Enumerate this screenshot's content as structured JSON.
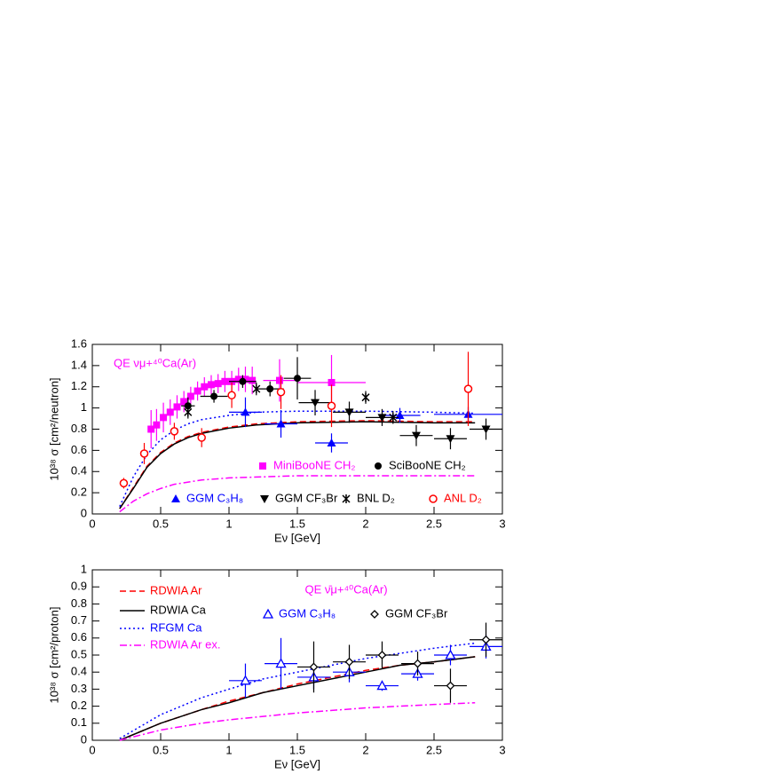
{
  "chart_data": [
    {
      "type": "line",
      "title": "QE  νμ+⁴⁰Ca(Ar)",
      "title_color": "#ff00ff",
      "xlabel": "Eν [GeV]",
      "ylabel": "10³⁸ σ [cm²/neutron]",
      "xlim": [
        0,
        3
      ],
      "ylim": [
        0,
        1.6
      ],
      "xticks": [
        0,
        0.5,
        1,
        1.5,
        2,
        2.5,
        3
      ],
      "yticks": [
        0,
        0.2,
        0.4,
        0.6,
        0.8,
        1,
        1.2,
        1.4,
        1.6
      ],
      "curves": [
        {
          "color": "#ff0000",
          "style": "dashed",
          "x": [
            0.2,
            0.3,
            0.4,
            0.5,
            0.6,
            0.7,
            0.8,
            1.0,
            1.2,
            1.5,
            2.0,
            2.5,
            2.8
          ],
          "values": [
            0.05,
            0.25,
            0.45,
            0.58,
            0.67,
            0.73,
            0.77,
            0.82,
            0.85,
            0.87,
            0.88,
            0.87,
            0.87
          ]
        },
        {
          "color": "#000000",
          "style": "solid",
          "x": [
            0.2,
            0.3,
            0.4,
            0.5,
            0.6,
            0.7,
            0.8,
            1.0,
            1.2,
            1.5,
            2.0,
            2.5,
            2.8
          ],
          "values": [
            0.05,
            0.24,
            0.44,
            0.57,
            0.66,
            0.72,
            0.76,
            0.81,
            0.84,
            0.86,
            0.87,
            0.86,
            0.86
          ]
        },
        {
          "color": "#0000ff",
          "style": "dotted",
          "x": [
            0.2,
            0.3,
            0.4,
            0.5,
            0.6,
            0.7,
            0.8,
            1.0,
            1.2,
            1.5,
            2.0,
            2.5,
            2.8
          ],
          "values": [
            0.07,
            0.35,
            0.56,
            0.7,
            0.79,
            0.85,
            0.89,
            0.93,
            0.96,
            0.97,
            0.97,
            0.96,
            0.95
          ]
        },
        {
          "color": "#ff00ff",
          "style": "dashdot",
          "x": [
            0.2,
            0.3,
            0.4,
            0.5,
            0.6,
            0.8,
            1.0,
            1.5,
            2.0,
            2.8
          ],
          "values": [
            0.02,
            0.12,
            0.19,
            0.24,
            0.28,
            0.32,
            0.34,
            0.36,
            0.36,
            0.36
          ]
        }
      ],
      "points": [
        {
          "name": "MiniBooNE CH₂",
          "color": "#ff00ff",
          "marker": "square",
          "x": [
            0.43,
            0.47,
            0.52,
            0.57,
            0.62,
            0.67,
            0.72,
            0.77,
            0.82,
            0.87,
            0.92,
            0.97,
            1.02,
            1.07,
            1.12,
            1.17,
            1.37,
            1.75
          ],
          "values": [
            0.8,
            0.84,
            0.91,
            0.96,
            1.01,
            1.06,
            1.11,
            1.16,
            1.2,
            1.22,
            1.23,
            1.25,
            1.25,
            1.27,
            1.27,
            1.26,
            1.26,
            1.24
          ],
          "errors": [
            0.18,
            0.15,
            0.14,
            0.12,
            0.11,
            0.1,
            0.09,
            0.09,
            0.09,
            0.09,
            0.09,
            0.1,
            0.1,
            0.11,
            0.12,
            0.13,
            0.2,
            0.26
          ],
          "xerrors": [
            0,
            0,
            0,
            0,
            0,
            0,
            0,
            0,
            0,
            0,
            0,
            0,
            0,
            0,
            0,
            0,
            0.12,
            0.25
          ]
        },
        {
          "name": "SciBooNE CH₂",
          "color": "#000000",
          "marker": "circle",
          "x": [
            0.7,
            0.89,
            1.1,
            1.3,
            1.5
          ],
          "values": [
            1.02,
            1.11,
            1.25,
            1.18,
            1.28
          ],
          "errors": [
            0.08,
            0.06,
            0.06,
            0.07,
            0.2
          ],
          "xerrors": [
            0.05,
            0.1,
            0.1,
            0.1,
            0.1
          ]
        },
        {
          "name": "GGM C₃H₈",
          "color": "#0000ff",
          "marker": "triup",
          "x": [
            1.12,
            1.38,
            1.75,
            2.25,
            2.75
          ],
          "values": [
            0.96,
            0.85,
            0.67,
            0.93,
            0.94
          ],
          "errors": [
            0.14,
            0.13,
            0.09,
            0.07,
            0.07
          ],
          "xerrors": [
            0.12,
            0.12,
            0.12,
            0.15,
            0.25
          ]
        },
        {
          "name": "GGM CF₃Br",
          "color": "#000000",
          "marker": "tridown",
          "x": [
            1.63,
            1.88,
            2.12,
            2.37,
            2.62,
            2.88
          ],
          "values": [
            1.05,
            0.96,
            0.91,
            0.74,
            0.71,
            0.8
          ],
          "errors": [
            0.12,
            0.1,
            0.08,
            0.1,
            0.1,
            0.1
          ],
          "xerrors": [
            0.12,
            0.12,
            0.12,
            0.12,
            0.12,
            0.12
          ]
        },
        {
          "name": "BNL D₂",
          "color": "#000000",
          "marker": "star",
          "x": [
            0.7,
            1.2,
            2.0,
            2.2
          ],
          "values": [
            0.96,
            1.18,
            1.1,
            0.91
          ],
          "errors": [
            0.06,
            0.06,
            0.06,
            0.06
          ],
          "xerrors": [
            0,
            0,
            0,
            0
          ]
        },
        {
          "name": "ANL D₂",
          "color": "#ff0000",
          "marker": "opencircle",
          "x": [
            0.23,
            0.38,
            0.6,
            0.8,
            1.02,
            1.38,
            1.75,
            2.75
          ],
          "values": [
            0.29,
            0.57,
            0.78,
            0.72,
            1.12,
            1.15,
            1.02,
            1.18
          ],
          "errors": [
            0.05,
            0.1,
            0.08,
            0.09,
            0.12,
            0.16,
            0.2,
            0.35
          ],
          "xerrors": [
            0,
            0,
            0,
            0,
            0,
            0,
            0,
            0
          ]
        }
      ]
    },
    {
      "type": "line",
      "title": "QE  ν̄μ+⁴⁰Ca(Ar)",
      "title_color": "#ff00ff",
      "xlabel": "Eν [GeV]",
      "ylabel": "10³⁸ σ [cm²/proton]",
      "xlim": [
        0,
        3
      ],
      "ylim": [
        0,
        1
      ],
      "xticks": [
        0,
        0.5,
        1,
        1.5,
        2,
        2.5,
        3
      ],
      "yticks": [
        0,
        0.1,
        0.2,
        0.3,
        0.4,
        0.5,
        0.6,
        0.7,
        0.8,
        0.9,
        1
      ],
      "curves": [
        {
          "name": "RDWIA Ar",
          "color": "#ff0000",
          "style": "dashed",
          "x": [
            0.2,
            0.5,
            0.8,
            1.0,
            1.25,
            1.5,
            1.75,
            2.0,
            2.25,
            2.5,
            2.8
          ],
          "values": [
            0.0,
            0.1,
            0.18,
            0.23,
            0.28,
            0.33,
            0.37,
            0.41,
            0.44,
            0.46,
            0.49
          ]
        },
        {
          "name": "RDWIA Ca",
          "color": "#000000",
          "style": "solid",
          "x": [
            0.2,
            0.5,
            0.8,
            1.0,
            1.25,
            1.5,
            1.75,
            2.0,
            2.25,
            2.5,
            2.8
          ],
          "values": [
            0.0,
            0.1,
            0.18,
            0.22,
            0.28,
            0.32,
            0.36,
            0.4,
            0.44,
            0.46,
            0.49
          ]
        },
        {
          "name": "RFGM Ca",
          "color": "#0000ff",
          "style": "dotted",
          "x": [
            0.2,
            0.5,
            0.8,
            1.0,
            1.25,
            1.5,
            1.75,
            2.0,
            2.25,
            2.5,
            2.8
          ],
          "values": [
            0.01,
            0.15,
            0.25,
            0.3,
            0.36,
            0.4,
            0.44,
            0.48,
            0.51,
            0.54,
            0.57
          ]
        },
        {
          "name": "RDWIA Ar ex.",
          "color": "#ff00ff",
          "style": "dashdot",
          "x": [
            0.2,
            0.5,
            0.8,
            1.0,
            1.25,
            1.5,
            1.75,
            2.0,
            2.25,
            2.5,
            2.8
          ],
          "values": [
            0.0,
            0.06,
            0.1,
            0.12,
            0.14,
            0.16,
            0.175,
            0.19,
            0.2,
            0.21,
            0.22
          ]
        }
      ],
      "points": [
        {
          "name": "GGM C₃H₈",
          "color": "#0000ff",
          "marker": "opentri",
          "x": [
            1.12,
            1.38,
            1.62,
            1.88,
            2.12,
            2.38,
            2.62,
            2.88
          ],
          "values": [
            0.35,
            0.45,
            0.37,
            0.4,
            0.32,
            0.39,
            0.5,
            0.55
          ],
          "errors": [
            0.1,
            0.15,
            0.07,
            0.06,
            0.03,
            0.04,
            0.06,
            0.07
          ],
          "xerrors": [
            0.12,
            0.12,
            0.12,
            0.12,
            0.12,
            0.12,
            0.12,
            0.12
          ]
        },
        {
          "name": "GGM CF₃Br",
          "color": "#000000",
          "marker": "opendiamond",
          "x": [
            1.62,
            1.88,
            2.12,
            2.38,
            2.62,
            2.88
          ],
          "values": [
            0.43,
            0.46,
            0.5,
            0.45,
            0.32,
            0.59
          ],
          "errors": [
            0.15,
            0.1,
            0.08,
            0.07,
            0.1,
            0.1
          ],
          "xerrors": [
            0.12,
            0.12,
            0.12,
            0.12,
            0.12,
            0.12
          ]
        }
      ]
    }
  ]
}
